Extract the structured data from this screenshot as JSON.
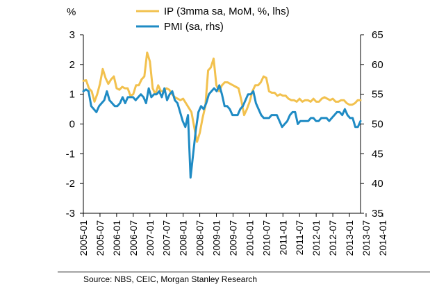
{
  "chart_data": {
    "type": "line",
    "left_axis_unit": "%",
    "left_ylim": [
      -3,
      3
    ],
    "left_yticks": [
      -3,
      -2,
      -1,
      0,
      1,
      2,
      3
    ],
    "right_ylim": [
      35,
      65
    ],
    "right_yticks": [
      35,
      40,
      45,
      50,
      55,
      60,
      65
    ],
    "x_tick_labels": [
      "2005-01",
      "2005-07",
      "2006-01",
      "2006-07",
      "2007-01",
      "2007-07",
      "2008-01",
      "2008-07",
      "2009-01",
      "2009-07",
      "2010-01",
      "2010-07",
      "2011-01",
      "2011-07",
      "2012-01",
      "2012-07",
      "2013-01",
      "2013-07",
      "2014-01"
    ],
    "grid": false,
    "legend_position": "top",
    "series": [
      {
        "name": "IP (3mma sa, MoM, %, lhs)",
        "axis": "left",
        "color": "#f2c14e",
        "values": [
          1.45,
          1.47,
          1.2,
          1.1,
          0.75,
          1.0,
          1.35,
          1.85,
          1.55,
          1.35,
          1.5,
          1.6,
          1.2,
          1.15,
          1.25,
          1.2,
          1.2,
          0.95,
          1.0,
          1.3,
          1.3,
          1.5,
          1.6,
          2.4,
          2.1,
          1.2,
          1.0,
          1.3,
          1.1,
          1.1,
          1.2,
          1.15,
          1.0,
          0.9,
          0.85,
          0.8,
          0.85,
          0.7,
          0.55,
          0.4,
          -0.1,
          -0.6,
          -0.3,
          0.2,
          0.6,
          1.8,
          1.9,
          2.2,
          1.3,
          1.1,
          1.3,
          1.4,
          1.4,
          1.35,
          1.3,
          1.25,
          1.2,
          0.8,
          0.3,
          0.5,
          0.75,
          1.1,
          1.3,
          1.3,
          1.4,
          1.6,
          1.55,
          1.1,
          1.05,
          1.05,
          0.95,
          1.0,
          0.95,
          0.95,
          0.85,
          0.8,
          0.8,
          0.75,
          0.85,
          0.75,
          0.8,
          0.8,
          0.75,
          0.85,
          0.75,
          0.75,
          0.85,
          0.9,
          0.85,
          0.8,
          0.85,
          0.75,
          0.75,
          0.8,
          0.8,
          0.7,
          0.65,
          0.65,
          0.7,
          0.8,
          0.8
        ]
      },
      {
        "name": "PMI (sa, rhs)",
        "axis": "right",
        "color": "#1f8bc4",
        "values": [
          55.5,
          55.8,
          55.5,
          53.0,
          52.5,
          52.0,
          53.0,
          53.5,
          54.0,
          55.5,
          54.0,
          53.5,
          53.0,
          53.0,
          53.5,
          54.5,
          53.5,
          54.5,
          54.5,
          54.5,
          54.0,
          54.5,
          55.0,
          54.5,
          53.5,
          56.0,
          54.5,
          55.0,
          55.0,
          55.5,
          54.5,
          56.0,
          54.0,
          55.0,
          55.5,
          54.0,
          53.5,
          52.0,
          50.5,
          49.5,
          51.5,
          41.0,
          45.0,
          49.0,
          52.0,
          53.0,
          52.5,
          53.5,
          55.0,
          55.5,
          56.0,
          55.5,
          56.5,
          55.0,
          53.0,
          53.0,
          52.5,
          51.5,
          51.5,
          51.5,
          52.5,
          53.0,
          54.0,
          55.0,
          55.0,
          55.5,
          53.5,
          52.5,
          51.5,
          51.0,
          51.0,
          51.0,
          51.5,
          51.5,
          51.5,
          50.5,
          49.5,
          50.0,
          50.5,
          51.5,
          52.0,
          52.0,
          50.0,
          50.5,
          50.5,
          50.5,
          50.5,
          51.0,
          51.0,
          50.5,
          50.5,
          51.0,
          51.0,
          51.0,
          50.5,
          51.0,
          51.5,
          52.0,
          52.0,
          51.5,
          52.5,
          51.5,
          51.0,
          51.0,
          49.5,
          49.5,
          50.5
        ]
      }
    ]
  },
  "source_text": "Source: NBS, CEIC, Morgan Stanley Research"
}
